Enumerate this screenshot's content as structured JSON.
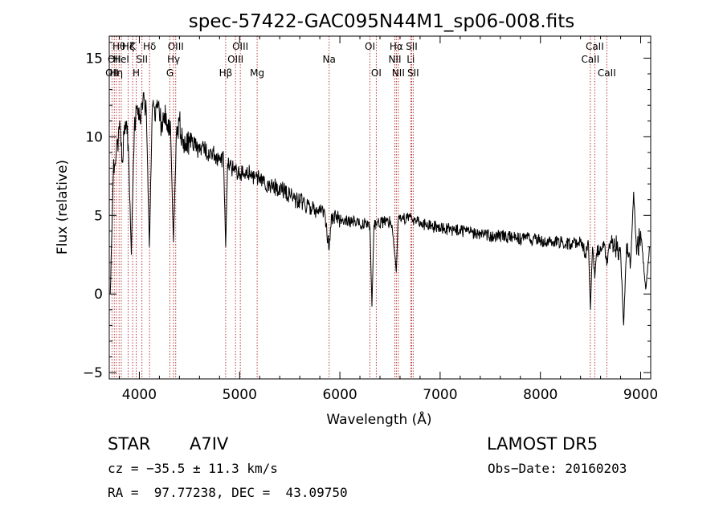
{
  "chart_data": {
    "type": "line",
    "title": "spec-57422-GAC095N44M1_sp06-008.fits",
    "xlabel": "Wavelength (Å)",
    "ylabel": "Flux (relative)",
    "xlim": [
      3700,
      9100
    ],
    "ylim": [
      -5.4,
      16.4
    ],
    "xticks": [
      4000,
      5000,
      6000,
      7000,
      8000,
      9000
    ],
    "yticks": [
      -5,
      0,
      5,
      10,
      15
    ],
    "grid": false,
    "series": [
      {
        "x": [
          3710,
          3740,
          3770,
          3800,
          3830,
          3860,
          3890,
          3920,
          3950,
          3980,
          4010,
          4040,
          4070,
          4100,
          4130,
          4160,
          4190,
          4220,
          4250,
          4280,
          4310,
          4340,
          4370,
          4400,
          4450,
          4500,
          4550,
          4600,
          4650,
          4700,
          4750,
          4800,
          4840,
          4861,
          4880,
          4920,
          4960,
          5000,
          5050,
          5100,
          5150,
          5200,
          5250,
          5300,
          5350,
          5400,
          5450,
          5500,
          5550,
          5600,
          5650,
          5700,
          5750,
          5800,
          5850,
          5893,
          5920,
          5960,
          6000,
          6050,
          6100,
          6150,
          6200,
          6250,
          6300,
          6320,
          6340,
          6380,
          6420,
          6480,
          6520,
          6563,
          6580,
          6620,
          6680,
          6720,
          6780,
          6850,
          6920,
          7000,
          7100,
          7200,
          7300,
          7400,
          7500,
          7600,
          7700,
          7800,
          7900,
          8000,
          8100,
          8200,
          8300,
          8400,
          8450,
          8480,
          8498,
          8520,
          8542,
          8560,
          8600,
          8640,
          8662,
          8690,
          8720,
          8760,
          8800,
          8830,
          8860,
          8900,
          8930,
          8960,
          9000,
          9050,
          9090
        ],
        "values": [
          0.0,
          7.5,
          9.0,
          10.5,
          8.5,
          11.0,
          9.5,
          2.5,
          10.5,
          12.0,
          10.8,
          12.8,
          11.5,
          3.0,
          12.0,
          11.0,
          12.2,
          10.5,
          11.5,
          10.8,
          11.0,
          3.3,
          10.2,
          11.0,
          9.2,
          9.8,
          9.6,
          9.0,
          9.3,
          8.7,
          8.9,
          8.5,
          8.6,
          3.0,
          8.3,
          8.0,
          7.9,
          7.7,
          7.6,
          7.7,
          7.3,
          7.4,
          7.0,
          6.9,
          6.8,
          6.7,
          6.6,
          6.3,
          6.0,
          6.0,
          5.7,
          5.6,
          5.4,
          5.2,
          5.1,
          2.8,
          5.0,
          4.9,
          4.7,
          4.8,
          4.5,
          4.7,
          4.4,
          4.6,
          4.3,
          -0.8,
          4.4,
          4.6,
          4.5,
          4.7,
          4.4,
          1.4,
          4.6,
          4.8,
          4.9,
          4.8,
          4.6,
          4.4,
          4.3,
          4.2,
          4.1,
          4.0,
          3.9,
          3.8,
          3.7,
          3.7,
          3.6,
          3.5,
          3.5,
          3.4,
          3.3,
          3.3,
          3.2,
          3.3,
          2.6,
          3.1,
          -1.0,
          3.0,
          1.0,
          2.6,
          3.0,
          3.2,
          1.8,
          3.0,
          3.5,
          3.0,
          2.6,
          -2.0,
          3.2,
          2.0,
          6.5,
          2.5,
          4.0,
          0.3,
          3.0
        ]
      }
    ],
    "lines": [
      {
        "wave": 3727,
        "label": "OII",
        "row": 3
      },
      {
        "wave": 3750,
        "label": "OII",
        "row": 2
      },
      {
        "wave": 3771,
        "label": "Hη",
        "row": 3
      },
      {
        "wave": 3798,
        "label": "Hθ",
        "row": 1
      },
      {
        "wave": 3820,
        "label": "HeI",
        "row": 2
      },
      {
        "wave": 3889,
        "label": "Hζ",
        "row": 1
      },
      {
        "wave": 3934,
        "label": "K",
        "row": 1
      },
      {
        "wave": 3969,
        "label": "H",
        "row": 3
      },
      {
        "wave": 4026,
        "label": "SII",
        "row": 2
      },
      {
        "wave": 4102,
        "label": "Hδ",
        "row": 1
      },
      {
        "wave": 4305,
        "label": "G",
        "row": 3
      },
      {
        "wave": 4341,
        "label": "Hγ",
        "row": 2
      },
      {
        "wave": 4363,
        "label": "OIII",
        "row": 1
      },
      {
        "wave": 4861,
        "label": "Hβ",
        "row": 3
      },
      {
        "wave": 4959,
        "label": "OIII",
        "row": 2
      },
      {
        "wave": 5007,
        "label": "OIII",
        "row": 1
      },
      {
        "wave": 5175,
        "label": "Mg",
        "row": 3
      },
      {
        "wave": 5893,
        "label": "Na",
        "row": 2
      },
      {
        "wave": 6300,
        "label": "OI",
        "row": 1
      },
      {
        "wave": 6363,
        "label": "OI",
        "row": 3
      },
      {
        "wave": 6548,
        "label": "NII",
        "row": 2
      },
      {
        "wave": 6563,
        "label": "Hα",
        "row": 1
      },
      {
        "wave": 6583,
        "label": "NII",
        "row": 3
      },
      {
        "wave": 6707,
        "label": "Li",
        "row": 2
      },
      {
        "wave": 6716,
        "label": "SII",
        "row": 1
      },
      {
        "wave": 6731,
        "label": "SII",
        "row": 3
      },
      {
        "wave": 8498,
        "label": "CaII",
        "row": 2
      },
      {
        "wave": 8542,
        "label": "CaII",
        "row": 1
      },
      {
        "wave": 8662,
        "label": "CaII",
        "row": 3
      }
    ]
  },
  "info": {
    "object_type": "STAR",
    "subclass": "A7IV",
    "survey": "LAMOST DR5",
    "cz": "cz = −35.5 ± 11.3 km/s",
    "obs_date": "Obs−Date: 20160203",
    "coords": "RA =  97.77238, DEC =  43.09750"
  },
  "colors": {
    "spectrum": "#000000",
    "line_markers": "#b22222",
    "axes": "#000000"
  }
}
